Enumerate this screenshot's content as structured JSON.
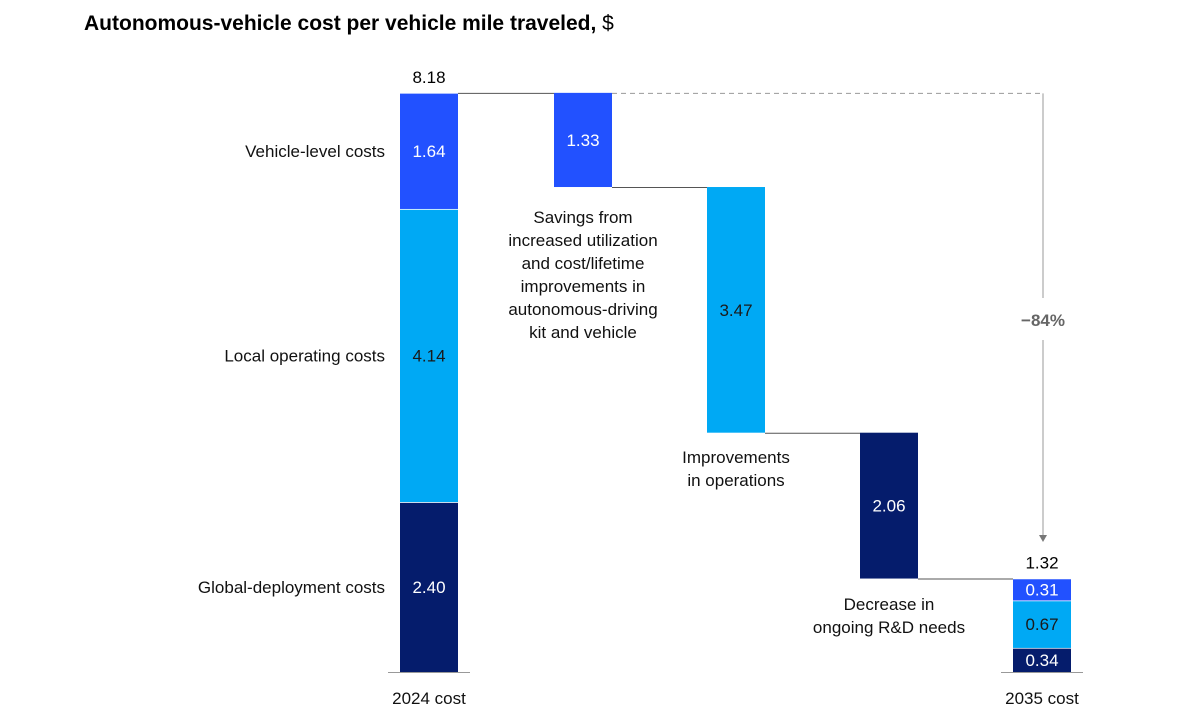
{
  "chart_data": {
    "type": "waterfall",
    "title": "Autonomous-vehicle cost per vehicle mile traveled,",
    "title_unit": "$",
    "colors": {
      "vehicle": "#2251ff",
      "local": "#00a9f4",
      "global": "#051c6c",
      "connector": "#555555",
      "dashed": "#999999"
    },
    "start": {
      "label": "2024 cost",
      "total": 8.18,
      "segments": [
        {
          "name": "Global-deployment costs",
          "value": 2.4,
          "display": "2.40",
          "color_key": "global"
        },
        {
          "name": "Local operating costs",
          "value": 4.14,
          "display": "4.14",
          "color_key": "local"
        },
        {
          "name": "Vehicle-level costs",
          "value": 1.64,
          "display": "1.64",
          "color_key": "vehicle"
        }
      ]
    },
    "steps": [
      {
        "value": -1.33,
        "display": "1.33",
        "color_key": "vehicle",
        "annotation": [
          "Savings from",
          "increased utilization",
          "and cost/lifetime",
          "improvements in",
          "autonomous-driving",
          "kit and vehicle"
        ]
      },
      {
        "value": -3.47,
        "display": "3.47",
        "color_key": "local",
        "annotation": [
          "Improvements",
          "in operations"
        ]
      },
      {
        "value": -2.06,
        "display": "2.06",
        "color_key": "global",
        "annotation": [
          "Decrease in",
          "ongoing R&D needs"
        ]
      }
    ],
    "end": {
      "label": "2035 cost",
      "total": 1.32,
      "segments": [
        {
          "value": 0.34,
          "display": "0.34",
          "color_key": "global"
        },
        {
          "value": 0.67,
          "display": "0.67",
          "color_key": "local"
        },
        {
          "value": 0.31,
          "display": "0.31",
          "color_key": "vehicle"
        }
      ]
    },
    "change_label": "−84%"
  }
}
